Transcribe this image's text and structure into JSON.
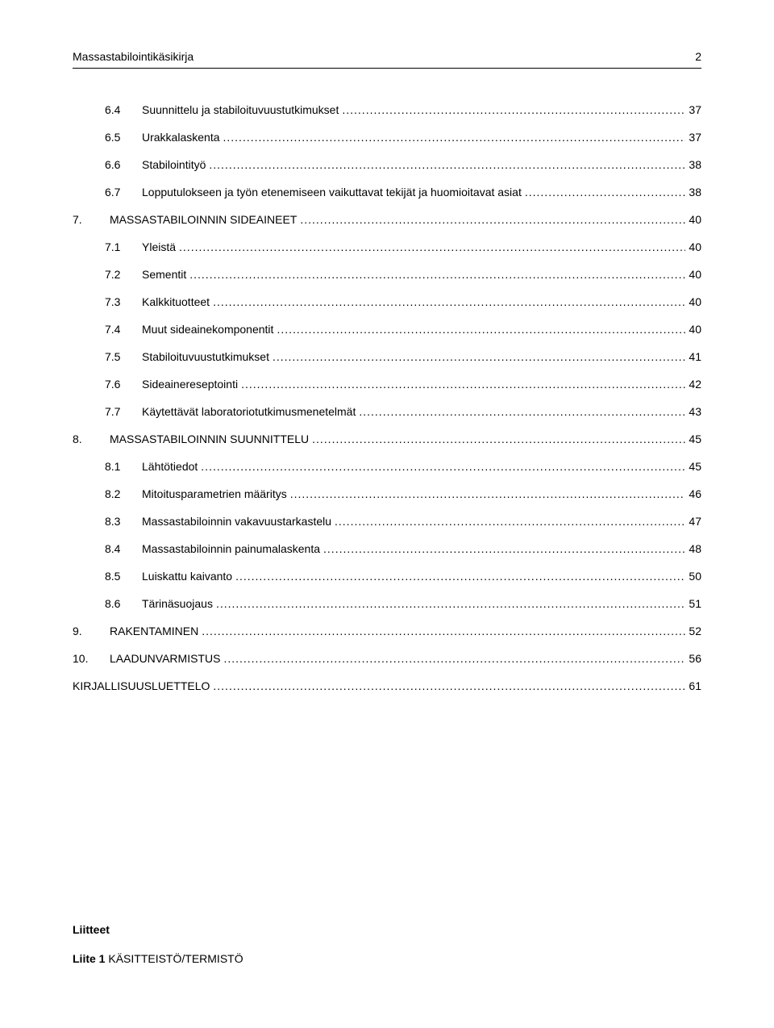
{
  "header": {
    "title": "Massastabilointikäsikirja",
    "page_number": "2"
  },
  "toc": [
    {
      "level": 2,
      "num": "6.4",
      "title": "Suunnittelu ja stabiloituvuustutkimukset",
      "page": "37"
    },
    {
      "level": 2,
      "num": "6.5",
      "title": "Urakkalaskenta",
      "page": "37"
    },
    {
      "level": 2,
      "num": "6.6",
      "title": "Stabilointityö",
      "page": "38"
    },
    {
      "level": 2,
      "num": "6.7",
      "title": "Lopputulokseen ja työn etenemiseen vaikuttavat tekijät ja huomioitavat asiat",
      "page": "38"
    },
    {
      "level": 1,
      "num": "7.",
      "title": "MASSASTABILOINNIN SIDEAINEET",
      "page": "40"
    },
    {
      "level": 2,
      "num": "7.1",
      "title": "Yleistä",
      "page": "40"
    },
    {
      "level": 2,
      "num": "7.2",
      "title": "Sementit",
      "page": "40"
    },
    {
      "level": 2,
      "num": "7.3",
      "title": "Kalkkituotteet",
      "page": "40"
    },
    {
      "level": 2,
      "num": "7.4",
      "title": "Muut sideainekomponentit",
      "page": "40"
    },
    {
      "level": 2,
      "num": "7.5",
      "title": "Stabiloituvuustutkimukset",
      "page": "41"
    },
    {
      "level": 2,
      "num": "7.6",
      "title": "Sideainereseptointi",
      "page": "42"
    },
    {
      "level": 2,
      "num": "7.7",
      "title": "Käytettävät laboratoriotutkimusmenetelmät",
      "page": "43"
    },
    {
      "level": 1,
      "num": "8.",
      "title": "MASSASTABILOINNIN SUUNNITTELU",
      "page": "45"
    },
    {
      "level": 2,
      "num": "8.1",
      "title": "Lähtötiedot",
      "page": "45"
    },
    {
      "level": 2,
      "num": "8.2",
      "title": "Mitoitusparametrien määritys",
      "page": "46"
    },
    {
      "level": 2,
      "num": "8.3",
      "title": "Massastabiloinnin vakavuustarkastelu",
      "page": "47"
    },
    {
      "level": 2,
      "num": "8.4",
      "title": "Massastabiloinnin painumalaskenta",
      "page": "48"
    },
    {
      "level": 2,
      "num": "8.5",
      "title": "Luiskattu kaivanto",
      "page": "50"
    },
    {
      "level": 2,
      "num": "8.6",
      "title": "Tärinäsuojaus",
      "page": "51"
    },
    {
      "level": 1,
      "num": "9.",
      "title": "RAKENTAMINEN",
      "page": "52"
    },
    {
      "level": 1,
      "num": "10.",
      "title": "LAADUNVARMISTUS",
      "page": "56"
    },
    {
      "level": 1,
      "num": "",
      "title": "KIRJALLISUUSLUETTELO",
      "page": "61",
      "noindent": true
    }
  ],
  "appendix": {
    "heading": "Liitteet",
    "item_label": "Liite 1",
    "item_title": "KÄSITTEISTÖ/TERMISTÖ"
  },
  "style": {
    "font_family": "Verdana",
    "font_size_pt": 11,
    "text_color": "#000000",
    "background_color": "#ffffff",
    "rule_color": "#000000",
    "leader_char": "."
  }
}
